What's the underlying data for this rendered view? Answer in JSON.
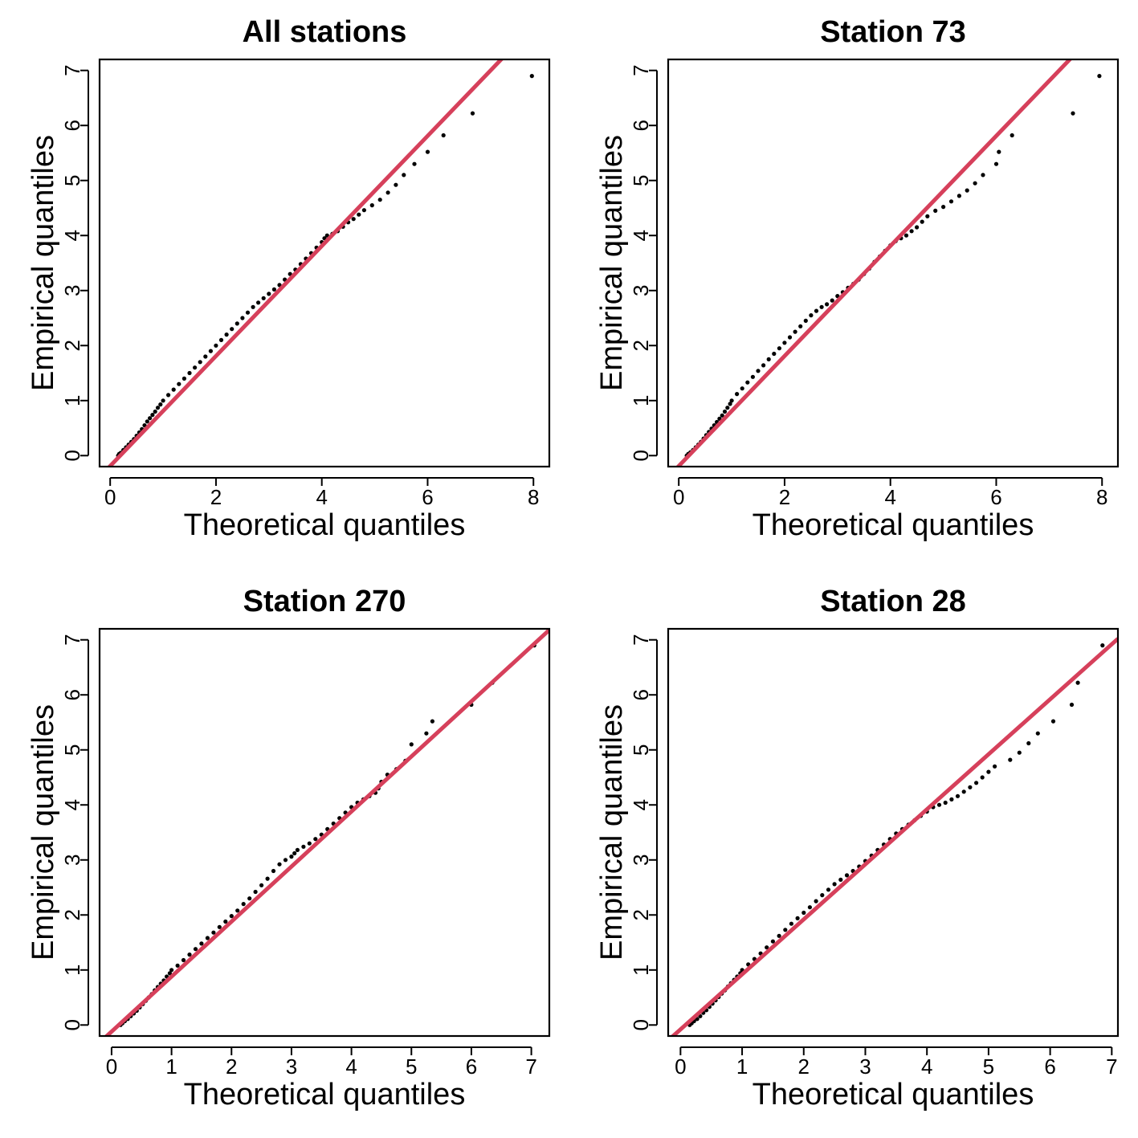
{
  "chart_data": [
    {
      "type": "scatter",
      "title": "All stations",
      "xlabel": "Theoretical quantiles",
      "ylabel": "Empirical quantiles",
      "xlim": [
        -0.2,
        8.3
      ],
      "ylim": [
        -0.2,
        7.2
      ],
      "xticks": [
        0,
        2,
        4,
        6,
        8
      ],
      "yticks": [
        0,
        1,
        2,
        3,
        4,
        5,
        6,
        7
      ],
      "reference_line": {
        "intercept": -0.19,
        "slope": 1.0,
        "color": "#d6405b"
      },
      "points": [
        [
          0.15,
          0.0
        ],
        [
          0.17,
          0.03
        ],
        [
          0.2,
          0.05
        ],
        [
          0.25,
          0.1
        ],
        [
          0.3,
          0.15
        ],
        [
          0.35,
          0.2
        ],
        [
          0.4,
          0.25
        ],
        [
          0.45,
          0.3
        ],
        [
          0.5,
          0.36
        ],
        [
          0.55,
          0.42
        ],
        [
          0.6,
          0.48
        ],
        [
          0.65,
          0.55
        ],
        [
          0.7,
          0.62
        ],
        [
          0.75,
          0.68
        ],
        [
          0.8,
          0.74
        ],
        [
          0.85,
          0.8
        ],
        [
          0.9,
          0.87
        ],
        [
          0.95,
          0.93
        ],
        [
          1.0,
          1.0
        ],
        [
          1.1,
          1.1
        ],
        [
          1.2,
          1.2
        ],
        [
          1.3,
          1.3
        ],
        [
          1.4,
          1.4
        ],
        [
          1.5,
          1.5
        ],
        [
          1.6,
          1.6
        ],
        [
          1.7,
          1.7
        ],
        [
          1.8,
          1.8
        ],
        [
          1.9,
          1.9
        ],
        [
          2.0,
          2.0
        ],
        [
          2.1,
          2.1
        ],
        [
          2.2,
          2.2
        ],
        [
          2.3,
          2.3
        ],
        [
          2.4,
          2.4
        ],
        [
          2.5,
          2.5
        ],
        [
          2.6,
          2.6
        ],
        [
          2.7,
          2.7
        ],
        [
          2.8,
          2.78
        ],
        [
          2.9,
          2.86
        ],
        [
          3.0,
          2.94
        ],
        [
          3.1,
          3.02
        ],
        [
          3.2,
          3.1
        ],
        [
          3.3,
          3.2
        ],
        [
          3.4,
          3.3
        ],
        [
          3.5,
          3.38
        ],
        [
          3.6,
          3.48
        ],
        [
          3.7,
          3.58
        ],
        [
          3.8,
          3.68
        ],
        [
          3.9,
          3.78
        ],
        [
          4.0,
          3.88
        ],
        [
          4.05,
          3.95
        ],
        [
          4.1,
          4.0
        ],
        [
          4.2,
          4.03
        ],
        [
          4.3,
          4.08
        ],
        [
          4.4,
          4.16
        ],
        [
          4.5,
          4.24
        ],
        [
          4.6,
          4.3
        ],
        [
          4.7,
          4.38
        ],
        [
          4.8,
          4.46
        ],
        [
          4.95,
          4.55
        ],
        [
          5.1,
          4.65
        ],
        [
          5.25,
          4.78
        ],
        [
          5.4,
          4.92
        ],
        [
          5.55,
          5.1
        ],
        [
          5.75,
          5.3
        ],
        [
          6.0,
          5.52
        ],
        [
          6.3,
          5.82
        ],
        [
          6.85,
          6.22
        ],
        [
          7.97,
          6.9
        ]
      ]
    },
    {
      "type": "scatter",
      "title": "Station 73",
      "xlabel": "Theoretical quantiles",
      "ylabel": "Empirical quantiles",
      "xlim": [
        -0.2,
        8.3
      ],
      "ylim": [
        -0.2,
        7.2
      ],
      "xticks": [
        0,
        2,
        4,
        6,
        8
      ],
      "yticks": [
        0,
        1,
        2,
        3,
        4,
        5,
        6,
        7
      ],
      "reference_line": {
        "intercept": -0.19,
        "slope": 1.0,
        "color": "#d6405b"
      },
      "points": [
        [
          0.15,
          0.0
        ],
        [
          0.18,
          0.03
        ],
        [
          0.22,
          0.06
        ],
        [
          0.27,
          0.1
        ],
        [
          0.32,
          0.15
        ],
        [
          0.37,
          0.2
        ],
        [
          0.42,
          0.25
        ],
        [
          0.47,
          0.31
        ],
        [
          0.52,
          0.37
        ],
        [
          0.57,
          0.43
        ],
        [
          0.62,
          0.49
        ],
        [
          0.67,
          0.55
        ],
        [
          0.72,
          0.61
        ],
        [
          0.77,
          0.67
        ],
        [
          0.82,
          0.73
        ],
        [
          0.87,
          0.8
        ],
        [
          0.92,
          0.87
        ],
        [
          0.97,
          0.94
        ],
        [
          1.0,
          1.0
        ],
        [
          1.1,
          1.12
        ],
        [
          1.2,
          1.22
        ],
        [
          1.3,
          1.33
        ],
        [
          1.4,
          1.43
        ],
        [
          1.5,
          1.54
        ],
        [
          1.6,
          1.64
        ],
        [
          1.7,
          1.75
        ],
        [
          1.8,
          1.85
        ],
        [
          1.9,
          1.95
        ],
        [
          2.0,
          2.05
        ],
        [
          2.1,
          2.15
        ],
        [
          2.2,
          2.25
        ],
        [
          2.3,
          2.35
        ],
        [
          2.4,
          2.45
        ],
        [
          2.5,
          2.55
        ],
        [
          2.6,
          2.63
        ],
        [
          2.7,
          2.7
        ],
        [
          2.8,
          2.75
        ],
        [
          2.9,
          2.82
        ],
        [
          3.0,
          2.9
        ],
        [
          3.1,
          2.97
        ],
        [
          3.2,
          3.05
        ],
        [
          3.3,
          3.12
        ],
        [
          3.4,
          3.2
        ],
        [
          3.5,
          3.3
        ],
        [
          3.6,
          3.4
        ],
        [
          3.7,
          3.52
        ],
        [
          3.8,
          3.62
        ],
        [
          3.9,
          3.72
        ],
        [
          4.0,
          3.82
        ],
        [
          4.1,
          3.9
        ],
        [
          4.2,
          3.95
        ],
        [
          4.3,
          4.0
        ],
        [
          4.4,
          4.08
        ],
        [
          4.5,
          4.15
        ],
        [
          4.6,
          4.25
        ],
        [
          4.7,
          4.35
        ],
        [
          4.85,
          4.45
        ],
        [
          5.0,
          4.52
        ],
        [
          5.15,
          4.62
        ],
        [
          5.3,
          4.72
        ],
        [
          5.45,
          4.82
        ],
        [
          5.6,
          4.95
        ],
        [
          5.75,
          5.1
        ],
        [
          6.0,
          5.3
        ],
        [
          6.05,
          5.52
        ],
        [
          6.3,
          5.82
        ],
        [
          7.45,
          6.22
        ],
        [
          7.95,
          6.9
        ]
      ]
    },
    {
      "type": "scatter",
      "title": "Station 270",
      "xlabel": "Theoretical quantiles",
      "ylabel": "Empirical quantiles",
      "xlim": [
        -0.2,
        7.3
      ],
      "ylim": [
        -0.2,
        7.2
      ],
      "xticks": [
        0,
        1,
        2,
        3,
        4,
        5,
        6,
        7
      ],
      "yticks": [
        0,
        1,
        2,
        3,
        4,
        5,
        6,
        7
      ],
      "reference_line": {
        "intercept": -0.12,
        "slope": 1.0,
        "color": "#d6405b"
      },
      "points": [
        [
          0.15,
          0.0
        ],
        [
          0.18,
          0.03
        ],
        [
          0.22,
          0.07
        ],
        [
          0.27,
          0.11
        ],
        [
          0.32,
          0.16
        ],
        [
          0.37,
          0.21
        ],
        [
          0.42,
          0.26
        ],
        [
          0.47,
          0.32
        ],
        [
          0.52,
          0.38
        ],
        [
          0.57,
          0.44
        ],
        [
          0.62,
          0.5
        ],
        [
          0.67,
          0.56
        ],
        [
          0.72,
          0.63
        ],
        [
          0.77,
          0.69
        ],
        [
          0.82,
          0.75
        ],
        [
          0.87,
          0.81
        ],
        [
          0.92,
          0.88
        ],
        [
          0.97,
          0.94
        ],
        [
          1.0,
          1.0
        ],
        [
          1.1,
          1.08
        ],
        [
          1.2,
          1.18
        ],
        [
          1.3,
          1.28
        ],
        [
          1.4,
          1.38
        ],
        [
          1.5,
          1.48
        ],
        [
          1.6,
          1.58
        ],
        [
          1.7,
          1.68
        ],
        [
          1.8,
          1.78
        ],
        [
          1.9,
          1.88
        ],
        [
          2.0,
          1.98
        ],
        [
          2.1,
          2.08
        ],
        [
          2.2,
          2.2
        ],
        [
          2.3,
          2.3
        ],
        [
          2.4,
          2.42
        ],
        [
          2.5,
          2.54
        ],
        [
          2.6,
          2.66
        ],
        [
          2.7,
          2.8
        ],
        [
          2.8,
          2.92
        ],
        [
          2.9,
          3.0
        ],
        [
          3.0,
          3.06
        ],
        [
          3.05,
          3.12
        ],
        [
          3.1,
          3.18
        ],
        [
          3.2,
          3.24
        ],
        [
          3.3,
          3.3
        ],
        [
          3.4,
          3.38
        ],
        [
          3.5,
          3.46
        ],
        [
          3.6,
          3.56
        ],
        [
          3.7,
          3.66
        ],
        [
          3.8,
          3.76
        ],
        [
          3.9,
          3.86
        ],
        [
          4.0,
          3.96
        ],
        [
          4.1,
          4.04
        ],
        [
          4.2,
          4.1
        ],
        [
          4.3,
          4.16
        ],
        [
          4.4,
          4.22
        ],
        [
          4.45,
          4.3
        ],
        [
          4.5,
          4.42
        ],
        [
          4.6,
          4.55
        ],
        [
          4.75,
          4.65
        ],
        [
          4.9,
          4.8
        ],
        [
          5.0,
          5.1
        ],
        [
          5.25,
          5.3
        ],
        [
          5.35,
          5.52
        ],
        [
          6.0,
          5.82
        ],
        [
          6.35,
          6.22
        ],
        [
          7.05,
          6.9
        ]
      ]
    },
    {
      "type": "scatter",
      "title": "Station 28",
      "xlabel": "Theoretical quantiles",
      "ylabel": "Empirical quantiles",
      "xlim": [
        -0.2,
        7.1
      ],
      "ylim": [
        -0.2,
        7.2
      ],
      "xticks": [
        0,
        1,
        2,
        3,
        4,
        5,
        6,
        7
      ],
      "yticks": [
        0,
        1,
        2,
        3,
        4,
        5,
        6,
        7
      ],
      "reference_line": {
        "intercept": -0.08,
        "slope": 1.0,
        "color": "#d6405b"
      },
      "points": [
        [
          0.15,
          0.0
        ],
        [
          0.18,
          0.03
        ],
        [
          0.22,
          0.07
        ],
        [
          0.27,
          0.11
        ],
        [
          0.32,
          0.16
        ],
        [
          0.37,
          0.22
        ],
        [
          0.42,
          0.27
        ],
        [
          0.47,
          0.33
        ],
        [
          0.52,
          0.39
        ],
        [
          0.57,
          0.45
        ],
        [
          0.62,
          0.51
        ],
        [
          0.67,
          0.57
        ],
        [
          0.72,
          0.63
        ],
        [
          0.77,
          0.7
        ],
        [
          0.82,
          0.76
        ],
        [
          0.87,
          0.82
        ],
        [
          0.92,
          0.88
        ],
        [
          0.97,
          0.94
        ],
        [
          1.0,
          1.0
        ],
        [
          1.1,
          1.1
        ],
        [
          1.2,
          1.2
        ],
        [
          1.3,
          1.3
        ],
        [
          1.4,
          1.41
        ],
        [
          1.5,
          1.52
        ],
        [
          1.6,
          1.62
        ],
        [
          1.7,
          1.73
        ],
        [
          1.8,
          1.84
        ],
        [
          1.9,
          1.94
        ],
        [
          2.0,
          2.04
        ],
        [
          2.1,
          2.14
        ],
        [
          2.2,
          2.25
        ],
        [
          2.3,
          2.36
        ],
        [
          2.4,
          2.46
        ],
        [
          2.5,
          2.56
        ],
        [
          2.6,
          2.64
        ],
        [
          2.7,
          2.72
        ],
        [
          2.8,
          2.8
        ],
        [
          2.9,
          2.88
        ],
        [
          3.0,
          2.98
        ],
        [
          3.1,
          3.08
        ],
        [
          3.2,
          3.18
        ],
        [
          3.3,
          3.28
        ],
        [
          3.4,
          3.38
        ],
        [
          3.5,
          3.48
        ],
        [
          3.6,
          3.56
        ],
        [
          3.7,
          3.64
        ],
        [
          3.8,
          3.72
        ],
        [
          3.9,
          3.8
        ],
        [
          4.0,
          3.88
        ],
        [
          4.1,
          3.96
        ],
        [
          4.2,
          4.0
        ],
        [
          4.3,
          4.04
        ],
        [
          4.4,
          4.1
        ],
        [
          4.5,
          4.16
        ],
        [
          4.6,
          4.24
        ],
        [
          4.7,
          4.32
        ],
        [
          4.8,
          4.4
        ],
        [
          4.9,
          4.5
        ],
        [
          5.0,
          4.6
        ],
        [
          5.1,
          4.7
        ],
        [
          5.35,
          4.82
        ],
        [
          5.5,
          4.95
        ],
        [
          5.65,
          5.12
        ],
        [
          5.8,
          5.3
        ],
        [
          6.05,
          5.52
        ],
        [
          6.35,
          5.82
        ],
        [
          6.45,
          6.22
        ],
        [
          6.85,
          6.9
        ]
      ]
    }
  ]
}
